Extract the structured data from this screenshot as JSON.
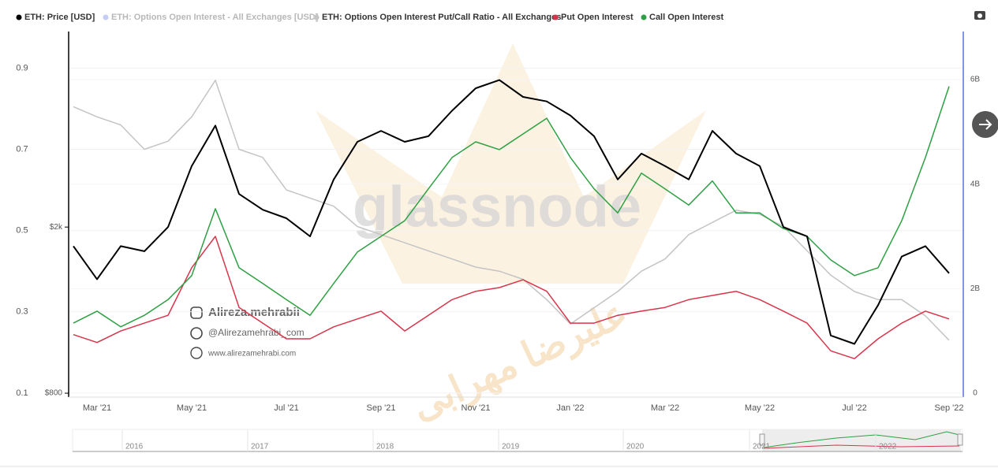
{
  "chart_data": {
    "type": "line",
    "categories": [
      null,
      "Mar '21",
      null,
      null,
      null,
      "May '21",
      null,
      null,
      null,
      "Jul '21",
      null,
      null,
      null,
      "Sep '21",
      null,
      null,
      null,
      "Nov '21",
      null,
      null,
      null,
      "Jan '22",
      null,
      null,
      null,
      "Mar '22",
      null,
      null,
      null,
      "May '22",
      null,
      null,
      null,
      "Jul '22",
      null,
      null,
      null,
      "Sep '22"
    ],
    "series": [
      {
        "name": "ETH: Price [USD]",
        "color": "#000000",
        "axis": "y3",
        "values": [
          1800,
          1500,
          1800,
          1750,
          2000,
          2800,
          3500,
          2400,
          2200,
          2100,
          1900,
          2600,
          3200,
          3400,
          3200,
          3300,
          3800,
          4300,
          4500,
          4100,
          4000,
          3700,
          3300,
          2600,
          3000,
          2800,
          2600,
          3400,
          3000,
          2800,
          2000,
          1900,
          1100,
          1050,
          1300,
          1700,
          1800,
          1550
        ]
      },
      {
        "name": "ETH: Options Open Interest - All Exchanges [USD]",
        "color": "#5b6ee1",
        "axis": "y2",
        "hidden": true
      },
      {
        "name": "ETH: Options Open Interest Put/Call Ratio - All Exchanges",
        "color": "#c4c4c4",
        "axis": "y",
        "values": [
          0.805,
          0.78,
          0.76,
          0.7,
          0.72,
          0.78,
          0.87,
          0.7,
          0.68,
          0.6,
          0.58,
          0.56,
          0.51,
          0.49,
          0.47,
          0.45,
          0.43,
          0.41,
          0.4,
          0.38,
          0.33,
          0.27,
          0.31,
          0.35,
          0.4,
          0.43,
          0.49,
          0.52,
          0.55,
          0.54,
          0.51,
          0.45,
          0.39,
          0.35,
          0.33,
          0.33,
          0.29,
          0.23
        ]
      },
      {
        "name": "Put Open Interest",
        "color": "#d9344a",
        "axis": "y2",
        "values": [
          1120000000.0,
          970000000.0,
          1190000000.0,
          1340000000.0,
          1490000000.0,
          2400000000.0,
          3000000000.0,
          1640000000.0,
          1340000000.0,
          1040000000.0,
          1040000000.0,
          1270000000.0,
          1420000000.0,
          1570000000.0,
          1190000000.0,
          1490000000.0,
          1790000000.0,
          1950000000.0,
          2020000000.0,
          2170000000.0,
          1950000000.0,
          1340000000.0,
          1340000000.0,
          1490000000.0,
          1570000000.0,
          1640000000.0,
          1790000000.0,
          1870000000.0,
          1950000000.0,
          1790000000.0,
          1570000000.0,
          1340000000.0,
          810000000.0,
          660000000.0,
          1040000000.0,
          1340000000.0,
          1570000000.0,
          1420000000.0
        ]
      },
      {
        "name": "Call Open Interest",
        "color": "#2ea043",
        "axis": "y2",
        "values": [
          1340000000.0,
          1570000000.0,
          1270000000.0,
          1490000000.0,
          1790000000.0,
          2250000000.0,
          3530000000.0,
          2400000000.0,
          2100000000.0,
          1790000000.0,
          1490000000.0,
          2100000000.0,
          2700000000.0,
          3000000000.0,
          3300000000.0,
          3910000000.0,
          4510000000.0,
          4810000000.0,
          4660000000.0,
          4960000000.0,
          5260000000.0,
          4510000000.0,
          3910000000.0,
          3450000000.0,
          4210000000.0,
          3910000000.0,
          3600000000.0,
          4060000000.0,
          3450000000.0,
          3450000000.0,
          3150000000.0,
          3000000000.0,
          2550000000.0,
          2250000000.0,
          2400000000.0,
          3300000000.0,
          4510000000.0,
          5870000000.0
        ]
      }
    ],
    "ylim": [
      0.09,
      0.99
    ],
    "yticks": [
      0.1,
      0.3,
      0.5,
      0.7,
      0.9
    ],
    "y2lim": [
      -75000000,
      6920000000
    ],
    "y2ticks": [
      0,
      {
        "value": 2000000000,
        "label": "2B"
      },
      {
        "value": 4000000000,
        "label": "4B"
      },
      {
        "value": 6000000000,
        "label": "6B"
      }
    ],
    "y3lim": [
      783,
      5880
    ],
    "y3log": true,
    "y3ticks": [
      {
        "value": 800,
        "label": "$800"
      },
      {
        "value": 2000,
        "label": "$2k"
      }
    ],
    "grid": true,
    "legend": "top-left",
    "navigator": {
      "labels": [
        "2016",
        "2017",
        "2018",
        "2019",
        "2020",
        "2021",
        "2022"
      ]
    },
    "watermarks": [
      "glassnode",
      "Alireza.mehrabii",
      "@Alirezamehrabi_com",
      "www.alirezamehrabi.com",
      "علیرضا مهرابی"
    ]
  }
}
